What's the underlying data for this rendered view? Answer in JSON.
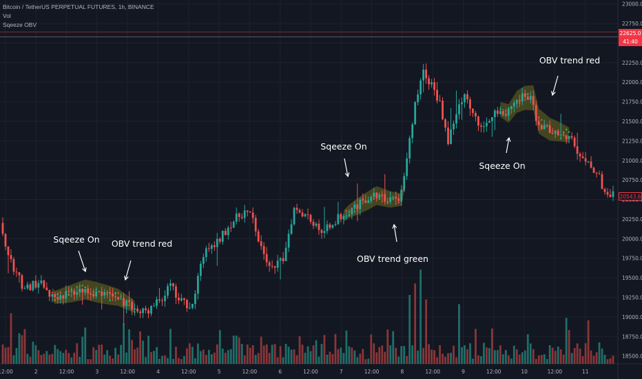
{
  "legend": {
    "title": "Bitcoin / TetherUS PERPETUAL FUTURES, 1h, BINANCE",
    "indicators": [
      "Vol",
      "Sqeeze OBV"
    ]
  },
  "price_tags": {
    "high": {
      "value": "22625.0",
      "countdown": "41:40"
    },
    "last": {
      "value": "20543.6"
    }
  },
  "colors": {
    "background": "#131722",
    "grid": "#1e222d",
    "up": "#26a69a",
    "down": "#ef5350",
    "up_volume": "#1f6f69",
    "down_volume": "#8a3638",
    "band_fill": "#6b6b1f",
    "dot_green": "#22c55e",
    "dot_red": "#ef4444",
    "axis_text": "#b2b5be",
    "annotation": "#ffffff"
  },
  "chart_data": {
    "type": "candlestick",
    "title": "Bitcoin / TetherUS PERPETUAL FUTURES, 1h, BINANCE",
    "y_axis": {
      "ticks": [
        18500,
        18750,
        19000,
        19250,
        19500,
        19750,
        20000,
        20250,
        20500,
        20750,
        21000,
        21250,
        21500,
        21750,
        22000,
        22250,
        22500,
        22750,
        23000
      ],
      "labels": [
        "18500.0",
        "18750.0",
        "19000.0",
        "19250.0",
        "19500.0",
        "19750.0",
        "20000.0",
        "20250.0",
        "20500.0",
        "20750.0",
        "21000.0",
        "21250.0",
        "21500.0",
        "21750.0",
        "22000.0",
        "22250.0",
        "22500.0",
        "22750.0",
        "23000.0"
      ],
      "range": [
        18400,
        23050
      ]
    },
    "x_axis": {
      "labels": [
        "12:00",
        "2",
        "12:00",
        "3",
        "12:00",
        "4",
        "12:00",
        "5",
        "12:00",
        "6",
        "12:00",
        "7",
        "12:00",
        "8",
        "12:00",
        "9",
        "12:00",
        "10",
        "12:00",
        "11"
      ],
      "range_bars": [
        0,
        222
      ]
    },
    "horizontal_lines": [
      22625,
      22560
    ],
    "price_path": [
      [
        0,
        20200
      ],
      [
        4,
        19700
      ],
      [
        9,
        19350
      ],
      [
        14,
        19450
      ],
      [
        19,
        19250
      ],
      [
        25,
        19300
      ],
      [
        30,
        19350
      ],
      [
        36,
        19300
      ],
      [
        42,
        19250
      ],
      [
        47,
        19150
      ],
      [
        51,
        19050
      ],
      [
        55,
        19100
      ],
      [
        59,
        19250
      ],
      [
        62,
        19400
      ],
      [
        65,
        19200
      ],
      [
        70,
        19150
      ],
      [
        74,
        19800
      ],
      [
        79,
        19950
      ],
      [
        84,
        20200
      ],
      [
        89,
        20350
      ],
      [
        92,
        20250
      ],
      [
        95,
        19850
      ],
      [
        99,
        19600
      ],
      [
        103,
        19750
      ],
      [
        107,
        20400
      ],
      [
        112,
        20300
      ],
      [
        116,
        20100
      ],
      [
        121,
        20200
      ],
      [
        126,
        20350
      ],
      [
        131,
        20450
      ],
      [
        136,
        20550
      ],
      [
        141,
        20500
      ],
      [
        145,
        20500
      ],
      [
        148,
        21000
      ],
      [
        151,
        21700
      ],
      [
        154,
        22150
      ],
      [
        157,
        21950
      ],
      [
        160,
        21750
      ],
      [
        163,
        21250
      ],
      [
        166,
        21600
      ],
      [
        169,
        21900
      ],
      [
        172,
        21600
      ],
      [
        175,
        21400
      ],
      [
        178,
        21550
      ],
      [
        181,
        21650
      ],
      [
        184,
        21600
      ],
      [
        187,
        21750
      ],
      [
        190,
        21800
      ],
      [
        193,
        21800
      ],
      [
        195,
        21500
      ],
      [
        199,
        21400
      ],
      [
        204,
        21350
      ],
      [
        208,
        21300
      ],
      [
        211,
        21000
      ],
      [
        214,
        20950
      ],
      [
        217,
        20850
      ],
      [
        220,
        20600
      ],
      [
        222,
        20550
      ]
    ],
    "volume_shape": {
      "max": 900,
      "spikes": [
        [
          3,
          440
        ],
        [
          46,
          300
        ],
        [
          108,
          240
        ],
        [
          121,
          260
        ],
        [
          148,
          600
        ],
        [
          150,
          700
        ],
        [
          152,
          820
        ],
        [
          154,
          560
        ],
        [
          166,
          520
        ],
        [
          205,
          400
        ],
        [
          213,
          380
        ]
      ]
    },
    "squeeze_zones": [
      {
        "start": 18,
        "end": 48,
        "center": 19380,
        "half_width": 130
      },
      {
        "start": 124,
        "end": 146,
        "center": 20550,
        "half_width": 120
      },
      {
        "start": 181,
        "end": 206,
        "center": 21700,
        "half_width": 160
      }
    ],
    "annotations": [
      {
        "text": "Sqeeze On",
        "lines": 1
      },
      {
        "text": "OBV trend red",
        "lines": 1
      },
      {
        "text": "Sqeeze On",
        "lines": 1
      },
      {
        "text": "OBV trend green",
        "lines": 1
      },
      {
        "text": "Sqeeze On",
        "lines": 1
      },
      {
        "text": "OBV trend red",
        "lines": 1
      }
    ]
  }
}
